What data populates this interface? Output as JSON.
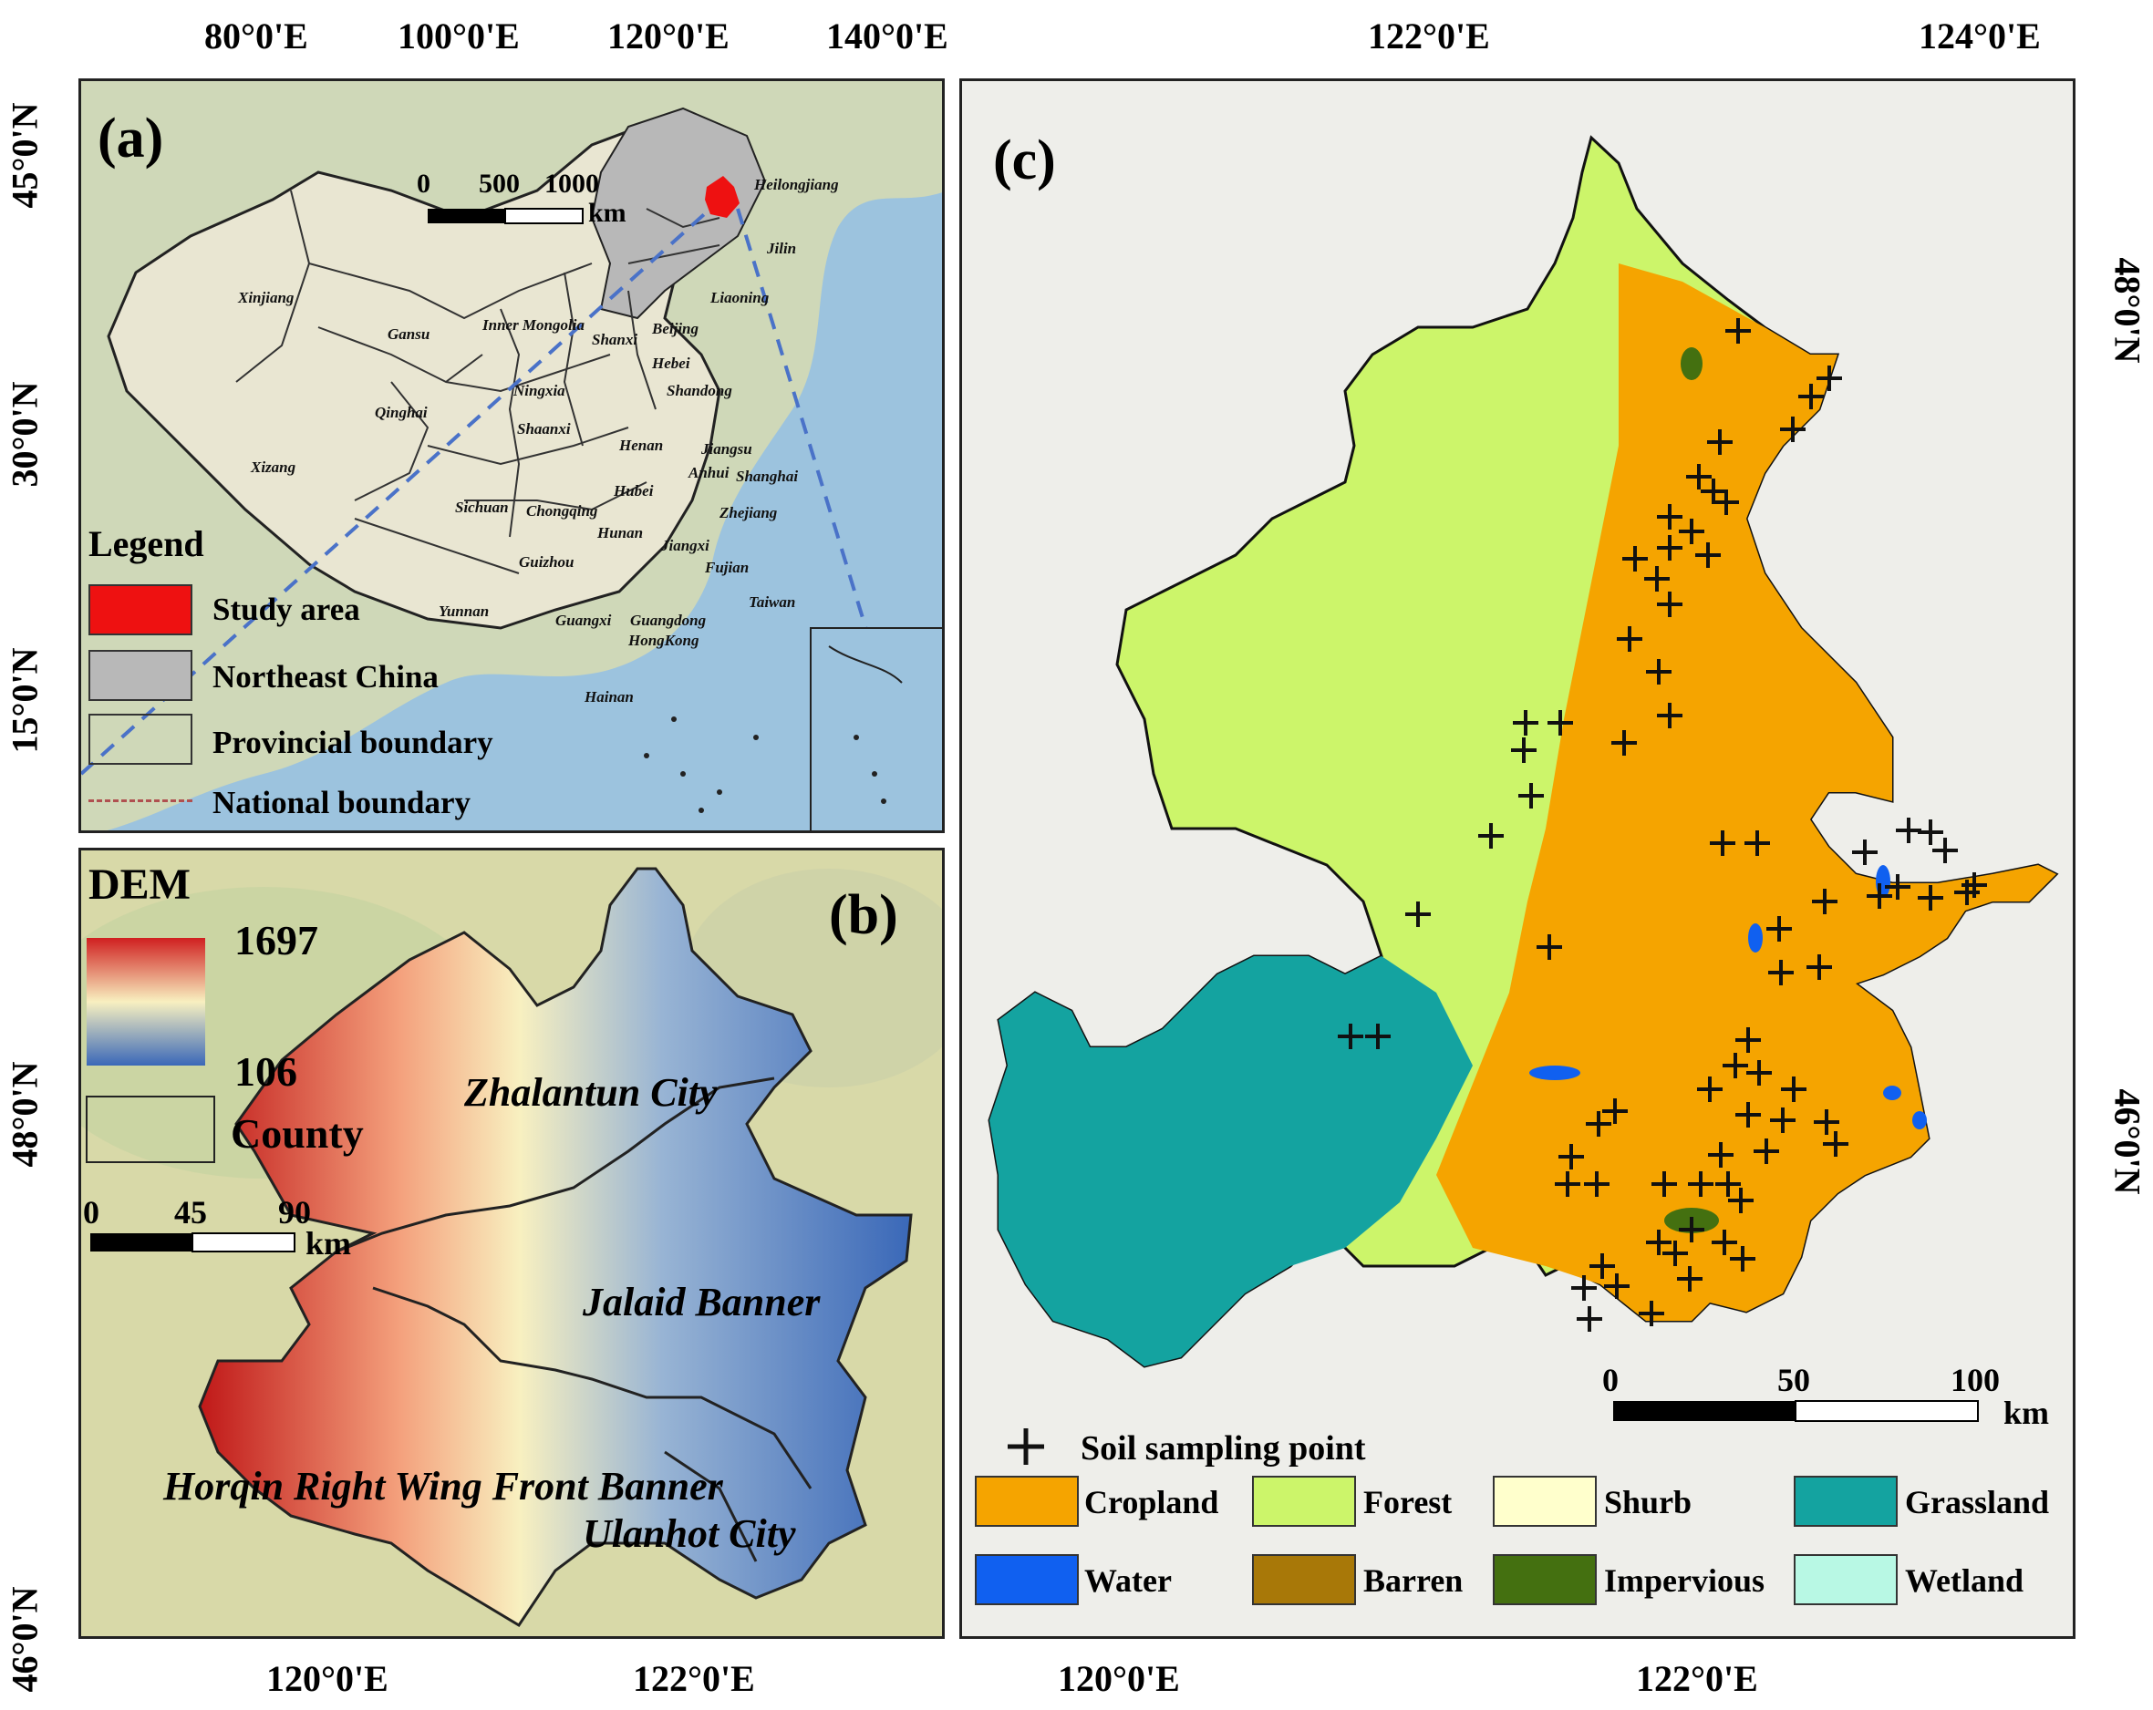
{
  "top_ticks": [
    "80°0'E",
    "100°0'E",
    "120°0'E",
    "140°0'E",
    "122°0'E",
    "124°0'E"
  ],
  "left_ticks_a": [
    "45°0'N",
    "30°0'N",
    "15°0'N"
  ],
  "left_ticks_b": [
    "48°0'N",
    "46°0'N"
  ],
  "right_ticks_c": [
    "48°0'N",
    "46°0'N"
  ],
  "bottom_ticks": [
    "120°0'E",
    "122°0'E",
    "120°0'E",
    "122°0'E"
  ],
  "panel_a": {
    "tag": "(a)",
    "scalebar": {
      "n0": "0",
      "n1": "500",
      "n2": "1000",
      "unit": "km"
    },
    "provinces": [
      "Heilongjiang",
      "Jilin",
      "Liaoning",
      "Xinjiang",
      "Gansu",
      "Inner Mongolia",
      "Beijing",
      "Hebei",
      "Shanxi",
      "Shandong",
      "Ningxia",
      "Qinghai",
      "Shaanxi",
      "Henan",
      "Jiangsu",
      "Anhui",
      "Shanghai",
      "Xizang",
      "Hubei",
      "Sichuan",
      "Chongqing",
      "Zhejiang",
      "Hunan",
      "Jiangxi",
      "Guizhou",
      "Fujian",
      "Yunnan",
      "Guangxi",
      "Guangdong",
      "Taiwan",
      "HongKong",
      "Hainan"
    ],
    "legend": {
      "title": "Legend",
      "items": [
        "Study area",
        "Northeast China",
        "Provincial boundary",
        "National boundary"
      ]
    }
  },
  "panel_b": {
    "tag": "(b)",
    "dem_title": "DEM",
    "dem_max": "1697",
    "dem_min": "106",
    "county_label": "County",
    "scalebar": {
      "n0": "0",
      "n1": "45",
      "n2": "90",
      "unit": "km"
    },
    "counties": [
      "Zhalantun City",
      "Jalaid Banner",
      "Horqin Right Wing Front Banner",
      "Ulanhot City"
    ]
  },
  "panel_c": {
    "tag": "(c)",
    "scalebar": {
      "n0": "0",
      "n1": "50",
      "n2": "100",
      "unit": "km"
    },
    "sampling_label": "Soil sampling point",
    "landcover": [
      {
        "label": "Cropland",
        "color": "#f5a400"
      },
      {
        "label": "Forest",
        "color": "#ccf56a"
      },
      {
        "label": "Shurb",
        "color": "#ffffcc"
      },
      {
        "label": "Grassland",
        "color": "#14a3a0"
      },
      {
        "label": "Water",
        "color": "#1060f0"
      },
      {
        "label": "Barren",
        "color": "#a87808"
      },
      {
        "label": "Impervious",
        "color": "#447010"
      },
      {
        "label": "Wetland",
        "color": "#b8f8e4"
      }
    ]
  },
  "colors": {
    "study_area": "#ee1111",
    "northeast_china": "#b8b8b8",
    "sea": "#9cc3de"
  }
}
